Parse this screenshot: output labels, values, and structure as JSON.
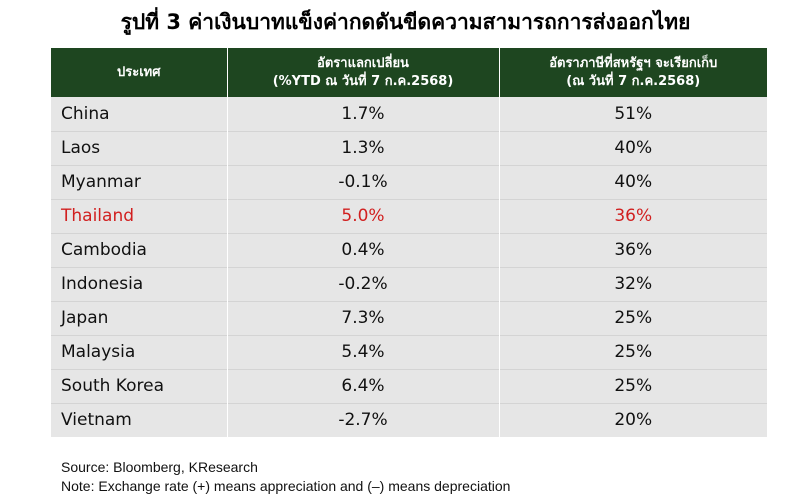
{
  "title": "รูปที่ 3 ค่าเงินบาทแข็งค่ากดดันขีดความสามารถการส่งออกไทย",
  "table": {
    "headers": {
      "country": "ประเทศ",
      "fx_line1": "อัตราแลกเปลี่ยน",
      "fx_line2": "(%YTD ณ วันที่ 7 ก.ค.2568)",
      "tariff_line1": "อัตราภาษีที่สหรัฐฯ จะเรียกเก็บ",
      "tariff_line2": "(ณ วันที่ 7 ก.ค.2568)"
    },
    "rows": [
      {
        "country": "China",
        "fx": "1.7%",
        "tariff": "51%"
      },
      {
        "country": "Laos",
        "fx": "1.3%",
        "tariff": "40%"
      },
      {
        "country": "Myanmar",
        "fx": "-0.1%",
        "tariff": "40%"
      },
      {
        "country": "Thailand",
        "fx": "5.0%",
        "tariff": "36%"
      },
      {
        "country": "Cambodia",
        "fx": "0.4%",
        "tariff": "36%"
      },
      {
        "country": "Indonesia",
        "fx": "-0.2%",
        "tariff": "32%"
      },
      {
        "country": "Japan",
        "fx": "7.3%",
        "tariff": "25%"
      },
      {
        "country": "Malaysia",
        "fx": "5.4%",
        "tariff": "25%"
      },
      {
        "country": "South Korea",
        "fx": "6.4%",
        "tariff": "25%"
      },
      {
        "country": "Vietnam",
        "fx": "-2.7%",
        "tariff": "20%"
      }
    ],
    "highlight_row_index": 3
  },
  "colors": {
    "header_bg": "#1e4620",
    "row_bg": "#e6e6e6",
    "highlight_text": "#d11f1f"
  },
  "footnotes": {
    "source": "Source: Bloomberg, KResearch",
    "note": "Note: Exchange rate (+) means appreciation and (–) means depreciation"
  }
}
